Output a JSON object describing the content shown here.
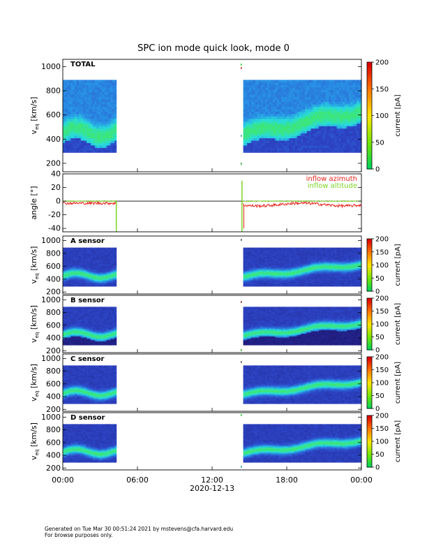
{
  "title": "SPC ion mode quick look, mode 0",
  "footer": {
    "line1": "Generated on Tue Mar 30 00:51:24 2021 by mstevens@cfa.harvard.edu",
    "line2": "For browse purposes only."
  },
  "colors": {
    "missing": "#ffffff",
    "no_signal": "#1a1060",
    "fill_bg": "#2a2fb0"
  },
  "chart_data": [
    {
      "type": "heatmap",
      "panel": "total",
      "label": "TOTAL",
      "ylabel_main": "v",
      "ylabel_sub": "eq",
      "ylabel_unit": "[km/s]",
      "ylim": [
        130,
        1060
      ],
      "yticks": [
        200,
        400,
        600,
        800,
        1000
      ],
      "data_range_kms": [
        290,
        880
      ],
      "data_start_hours": [
        0,
        14.5
      ],
      "data_end_hours": [
        4.3,
        24
      ],
      "colorbar": {
        "label": "current [pA]",
        "range": [
          0,
          200
        ],
        "ticks": [
          0,
          50,
          100,
          150,
          200
        ],
        "scale": "rainbow-white"
      }
    },
    {
      "type": "line",
      "panel": "angle",
      "ylabel": "angle [°]",
      "ylim": [
        -45,
        40
      ],
      "yticks": [
        -40,
        -20,
        0,
        20,
        40
      ],
      "series": [
        {
          "name": "inflow azimuth",
          "color": "#e8231b",
          "mean": -3
        },
        {
          "name": "inflow altitude",
          "color": "#7dd322",
          "mean": 0
        }
      ]
    },
    {
      "type": "heatmap",
      "panel": "A",
      "label": "A sensor",
      "ylabel_main": "v",
      "ylabel_sub": "eq",
      "ylabel_unit": "[km/s]",
      "ylim": [
        170,
        1070
      ],
      "yticks": [
        200,
        400,
        600,
        800,
        1000
      ],
      "colorbar": {
        "label": "current [pA]",
        "range": [
          0,
          200
        ],
        "ticks": [
          0,
          50,
          100,
          150,
          200
        ],
        "scale": "rainbow-black"
      }
    },
    {
      "type": "heatmap",
      "panel": "B",
      "label": "B sensor",
      "ylabel_main": "v",
      "ylabel_sub": "eq",
      "ylabel_unit": "[km/s]",
      "ylim": [
        170,
        1070
      ],
      "yticks": [
        200,
        400,
        600,
        800,
        1000
      ],
      "colorbar": {
        "label": "current [pA]",
        "range": [
          0,
          200
        ],
        "ticks": [
          0,
          50,
          100,
          150,
          200
        ],
        "scale": "rainbow-black"
      }
    },
    {
      "type": "heatmap",
      "panel": "C",
      "label": "C sensor",
      "ylabel_main": "v",
      "ylabel_sub": "eq",
      "ylabel_unit": "[km/s]",
      "ylim": [
        170,
        1070
      ],
      "yticks": [
        200,
        400,
        600,
        800,
        1000
      ],
      "colorbar": {
        "label": "current [pA]",
        "range": [
          0,
          200
        ],
        "ticks": [
          0,
          50,
          100,
          150,
          200
        ],
        "scale": "rainbow-black"
      }
    },
    {
      "type": "heatmap",
      "panel": "D",
      "label": "D sensor",
      "ylabel_main": "v",
      "ylabel_sub": "eq",
      "ylabel_unit": "[km/s]",
      "ylim": [
        170,
        1070
      ],
      "yticks": [
        200,
        400,
        600,
        800,
        1000
      ],
      "colorbar": {
        "label": "current [pA]",
        "range": [
          0,
          200
        ],
        "ticks": [
          0,
          50,
          100,
          150,
          200
        ],
        "scale": "rainbow-black"
      }
    }
  ],
  "xaxis": {
    "ticks": [
      "00:00",
      "06:00",
      "12:00",
      "18:00",
      "00:00"
    ],
    "tick_hours": [
      0,
      6,
      12,
      18,
      24
    ],
    "date_label": "2020-12-13",
    "data_gap_hours": [
      4.3,
      14.5
    ]
  }
}
